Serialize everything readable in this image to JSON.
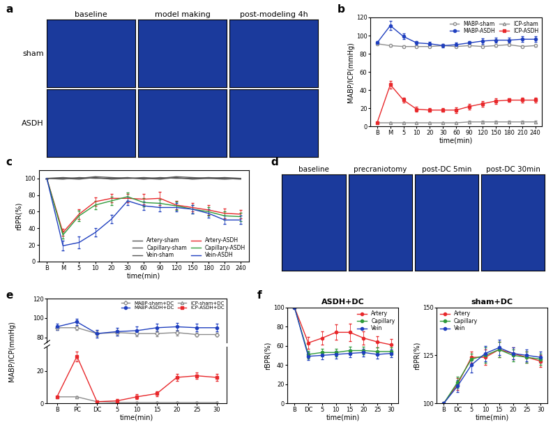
{
  "image_panels": [
    {
      "label": "a",
      "columns": [
        "baseline",
        "model making",
        "post-modeling 4h"
      ],
      "rows": [
        "sham",
        "ASDH"
      ]
    },
    {
      "label": "d",
      "columns": [
        "baseline",
        "precraniotomy",
        "post-DC 5min",
        "post-DC 30min"
      ],
      "rows": []
    }
  ],
  "chart_data": [
    {
      "type": "line",
      "annotations": [
        "b"
      ],
      "x_label": "time(min)",
      "y_label": "MABP/ICP(mmHg)",
      "categories": [
        "B",
        "M",
        "5",
        "10",
        "20",
        "30",
        "60",
        "90",
        "120",
        "150",
        "180",
        "210",
        "240"
      ],
      "ylim": [
        0,
        120
      ],
      "yticks": [
        0,
        20,
        40,
        60,
        80,
        100,
        120
      ],
      "grid": false,
      "legend": "upper right",
      "series": [
        {
          "name": "MABP-sham",
          "color": "#8c8c8c",
          "marker": "circle",
          "line_style": "solid",
          "values": [
            91,
            89,
            88,
            88,
            88,
            89,
            88,
            89,
            88,
            89,
            90,
            88,
            89
          ],
          "errors": [
            1,
            1,
            1,
            1,
            1,
            1,
            1,
            1,
            1,
            1,
            1,
            1,
            1
          ]
        },
        {
          "name": "MABP-ASDH",
          "color": "#1f3fbf",
          "marker": "circle",
          "line_style": "solid",
          "values": [
            92,
            111,
            99,
            92,
            91,
            89,
            90,
            92,
            94,
            95,
            95,
            96,
            96
          ],
          "errors": [
            2,
            5,
            3,
            2,
            2,
            2,
            2,
            2,
            3,
            3,
            3,
            3,
            3
          ]
        },
        {
          "name": "ICP-sham",
          "color": "#8c8c8c",
          "marker": "triangle",
          "line_style": "solid",
          "values": [
            4,
            4,
            4,
            4,
            4,
            4,
            4,
            5,
            5,
            5,
            5,
            5,
            5
          ],
          "errors": [
            1,
            1,
            1,
            1,
            1,
            1,
            1,
            1,
            1,
            1,
            1,
            1,
            1
          ]
        },
        {
          "name": "ICP-ASDH",
          "color": "#e8282b",
          "marker": "square",
          "line_style": "solid",
          "values": [
            4,
            46,
            29,
            19,
            18,
            18,
            18,
            22,
            25,
            28,
            29,
            29,
            29
          ],
          "errors": [
            1,
            4,
            3,
            3,
            2,
            2,
            3,
            3,
            3,
            3,
            2,
            3,
            3
          ]
        }
      ]
    },
    {
      "type": "line",
      "annotations": [
        "c"
      ],
      "x_label": "time(min)",
      "y_label": "rBPR(%)",
      "categories": [
        "B",
        "M",
        "5",
        "10",
        "20",
        "30",
        "60",
        "90",
        "120",
        "150",
        "180",
        "210",
        "240"
      ],
      "ylim": [
        0,
        110
      ],
      "yticks": [
        0,
        20,
        40,
        60,
        80,
        100
      ],
      "grid": false,
      "legend": "lower right",
      "series": [
        {
          "name": "Artery-sham",
          "color": "#555555",
          "marker": "none",
          "line_style": "solid",
          "values": [
            100,
            101,
            100,
            102,
            101,
            100,
            101,
            100,
            102,
            101,
            100,
            101,
            100
          ]
        },
        {
          "name": "Capillary-sham",
          "color": "#555555",
          "marker": "none",
          "line_style": "solid",
          "values": [
            100,
            99,
            101,
            100,
            100,
            101,
            99,
            101,
            100,
            100,
            101,
            100,
            99
          ]
        },
        {
          "name": "Vein-sham",
          "color": "#555555",
          "marker": "none",
          "line_style": "solid",
          "values": [
            100,
            100,
            99,
            101,
            99,
            100,
            100,
            99,
            101,
            99,
            100,
            99,
            100
          ]
        },
        {
          "name": "Artery-ASDH",
          "color": "#e8282b",
          "marker": "none",
          "line_style": "solid",
          "values": [
            100,
            35,
            57,
            72,
            76,
            76,
            75,
            76,
            68,
            65,
            62,
            58,
            57
          ],
          "errors": [
            0,
            4,
            6,
            5,
            5,
            5,
            6,
            8,
            5,
            5,
            6,
            6,
            5
          ]
        },
        {
          "name": "Capillary-ASDH",
          "color": "#2e9a3a",
          "marker": "none",
          "line_style": "solid",
          "values": [
            100,
            32,
            55,
            68,
            73,
            78,
            71,
            70,
            67,
            63,
            60,
            55,
            54
          ],
          "errors": [
            0,
            4,
            6,
            5,
            5,
            5,
            5,
            5,
            5,
            5,
            5,
            5,
            5
          ]
        },
        {
          "name": "Vein-ASDH",
          "color": "#1f3fbf",
          "marker": "none",
          "line_style": "solid",
          "values": [
            100,
            19,
            23,
            35,
            51,
            73,
            67,
            65,
            65,
            63,
            58,
            50,
            50
          ],
          "errors": [
            0,
            6,
            7,
            5,
            5,
            5,
            5,
            5,
            5,
            5,
            5,
            5,
            5
          ]
        }
      ]
    },
    {
      "type": "line",
      "annotations": [
        "e"
      ],
      "x_label": "time(min)",
      "y_label": "MABP/ICP(mmHg)",
      "categories": [
        "B",
        "PC",
        "DC",
        "5",
        "10",
        "15",
        "20",
        "25",
        "30"
      ],
      "ylim": [
        0,
        35
      ],
      "yticks": [
        0,
        20
      ],
      "y2lim": [
        75,
        120
      ],
      "y2ticks": [
        80,
        100,
        120
      ],
      "grid": false,
      "legend": "upper right",
      "series": [
        {
          "name": "MABP-sham+DC",
          "color": "#8c8c8c",
          "marker": "diamond",
          "line_style": "solid",
          "axis": "y2",
          "values": [
            90,
            90,
            84,
            85,
            84,
            84,
            85,
            83,
            83
          ],
          "errors": [
            2,
            2,
            3,
            3,
            3,
            3,
            3,
            2,
            2
          ]
        },
        {
          "name": "MABP-ASDH+DC",
          "color": "#1f3fbf",
          "marker": "circle",
          "line_style": "solid",
          "axis": "y2",
          "values": [
            91,
            96,
            84,
            86,
            87,
            90,
            91,
            90,
            90
          ],
          "errors": [
            3,
            3,
            4,
            4,
            4,
            4,
            4,
            4,
            4
          ]
        },
        {
          "name": "ICP-sham+DC",
          "color": "#8c8c8c",
          "marker": "triangle",
          "line_style": "solid",
          "values": [
            4,
            4,
            1,
            0.5,
            0.5,
            0.5,
            0.5,
            0.5,
            0.5
          ],
          "errors": [
            0.5,
            0.5,
            0.5,
            0.5,
            0.5,
            0.5,
            0.5,
            0.5,
            0.5
          ]
        },
        {
          "name": "ICP-ASDH+DC",
          "color": "#e8282b",
          "marker": "square",
          "line_style": "solid",
          "values": [
            4,
            29,
            1,
            1.5,
            4,
            6,
            16,
            17,
            16
          ],
          "errors": [
            0.5,
            3,
            0.5,
            1,
            1.5,
            1.5,
            2,
            2,
            2
          ]
        }
      ]
    },
    {
      "type": "line",
      "annotations": [
        "f"
      ],
      "title": "ASDH+DC",
      "x_label": "time(min)",
      "y_label": "rBPR(%)",
      "categories": [
        "B",
        "DC",
        "5",
        "10",
        "15",
        "20",
        "25",
        "30"
      ],
      "ylim": [
        0,
        100
      ],
      "yticks": [
        0,
        20,
        40,
        60,
        80,
        100
      ],
      "grid": false,
      "legend": "upper right",
      "series": [
        {
          "name": "Artery",
          "color": "#e8282b",
          "marker": "circle",
          "line_style": "solid",
          "values": [
            100,
            63,
            68,
            74,
            74,
            68,
            64,
            61
          ],
          "errors": [
            0,
            6,
            7,
            8,
            9,
            7,
            6,
            6
          ]
        },
        {
          "name": "Capillary",
          "color": "#2e9a3a",
          "marker": "circle",
          "line_style": "solid",
          "values": [
            100,
            51,
            53,
            53,
            55,
            55,
            54,
            54
          ],
          "errors": [
            0,
            4,
            4,
            4,
            4,
            4,
            4,
            4
          ]
        },
        {
          "name": "Vein",
          "color": "#1f3fbf",
          "marker": "circle",
          "line_style": "solid",
          "values": [
            100,
            49,
            50,
            51,
            52,
            53,
            51,
            52
          ],
          "errors": [
            0,
            4,
            4,
            4,
            4,
            4,
            4,
            4
          ]
        }
      ]
    },
    {
      "type": "line",
      "title": "sham+DC",
      "x_label": "time(min)",
      "y_label": "rBPR(%)",
      "categories": [
        "B",
        "DC",
        "5",
        "10",
        "15",
        "20",
        "25",
        "30"
      ],
      "ylim": [
        100,
        150
      ],
      "yticks": [
        100,
        125,
        150
      ],
      "grid": false,
      "legend": "upper left",
      "series": [
        {
          "name": "Artery",
          "color": "#e8282b",
          "marker": "circle",
          "line_style": "solid",
          "values": [
            100,
            110,
            124,
            124,
            128,
            126,
            124,
            122
          ],
          "errors": [
            0,
            3,
            3,
            4,
            4,
            3,
            3,
            3
          ]
        },
        {
          "name": "Capillary",
          "color": "#2e9a3a",
          "marker": "circle",
          "line_style": "solid",
          "values": [
            100,
            111,
            123,
            125,
            128,
            125,
            124,
            123
          ],
          "errors": [
            0,
            3,
            3,
            4,
            4,
            3,
            3,
            3
          ]
        },
        {
          "name": "Vein",
          "color": "#1f3fbf",
          "marker": "circle",
          "line_style": "solid",
          "values": [
            100,
            109,
            120,
            126,
            129,
            126,
            125,
            124
          ],
          "errors": [
            0,
            3,
            4,
            4,
            4,
            3,
            3,
            3
          ]
        }
      ]
    }
  ]
}
